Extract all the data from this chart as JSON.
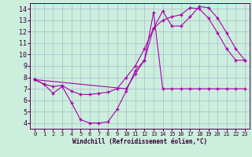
{
  "xlabel": "Windchill (Refroidissement éolien,°C)",
  "bg_color": "#cceedd",
  "grid_color": "#aabbcc",
  "line_color": "#aa00aa",
  "xlim": [
    -0.5,
    23.5
  ],
  "ylim": [
    3.5,
    14.5
  ],
  "xticks": [
    0,
    1,
    2,
    3,
    4,
    5,
    6,
    7,
    8,
    9,
    10,
    11,
    12,
    13,
    14,
    15,
    16,
    17,
    18,
    19,
    20,
    21,
    22,
    23
  ],
  "yticks": [
    4,
    5,
    6,
    7,
    8,
    9,
    10,
    11,
    12,
    13,
    14
  ],
  "line1_x": [
    0,
    1,
    2,
    3,
    4,
    5,
    6,
    7,
    8,
    9,
    10,
    11,
    12,
    13,
    14,
    15,
    16,
    17,
    18,
    19,
    20,
    21,
    22,
    23
  ],
  "line1_y": [
    7.8,
    7.4,
    6.6,
    7.2,
    5.8,
    4.3,
    4.0,
    4.0,
    4.1,
    5.2,
    6.8,
    8.6,
    9.5,
    13.7,
    7.0,
    7.0,
    7.0,
    7.0,
    7.0,
    7.0,
    7.0,
    7.0,
    7.0,
    7.0
  ],
  "line2_x": [
    0,
    1,
    2,
    3,
    4,
    5,
    6,
    7,
    8,
    9,
    10,
    11,
    12,
    13,
    14,
    15,
    16,
    17,
    18,
    19,
    20,
    21,
    22,
    23
  ],
  "line2_y": [
    7.8,
    7.4,
    7.2,
    7.3,
    6.8,
    6.5,
    6.5,
    6.6,
    6.7,
    7.0,
    8.0,
    9.0,
    10.5,
    12.3,
    13.0,
    13.3,
    13.5,
    14.1,
    14.0,
    13.2,
    11.9,
    10.5,
    9.5,
    9.5
  ],
  "line3_x": [
    0,
    10,
    11,
    12,
    13,
    14,
    15,
    16,
    17,
    18,
    19,
    20,
    21,
    22,
    23
  ],
  "line3_y": [
    7.8,
    7.0,
    8.3,
    9.5,
    12.3,
    13.8,
    12.5,
    12.5,
    13.3,
    14.2,
    14.1,
    13.2,
    11.9,
    10.5,
    9.5
  ]
}
